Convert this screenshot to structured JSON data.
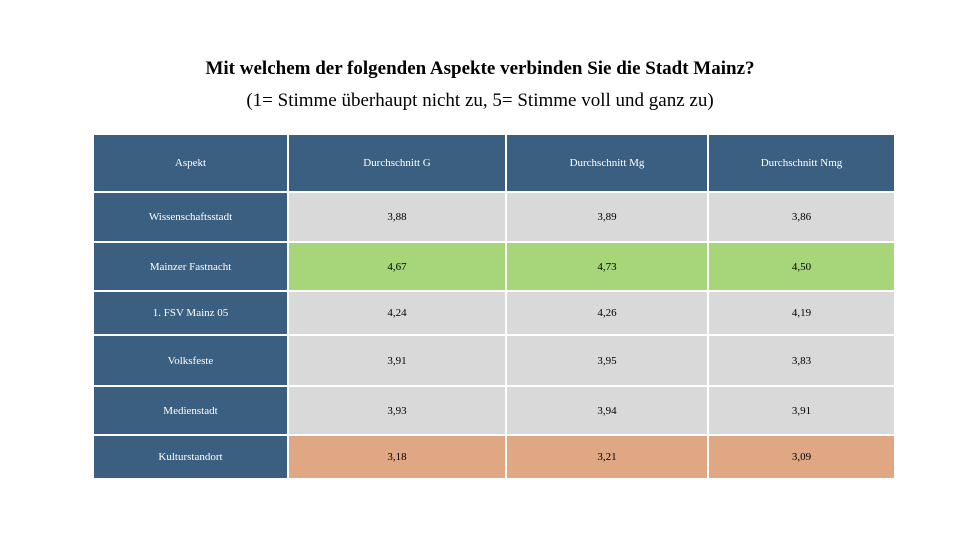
{
  "title": "Mit welchem der folgenden Aspekte verbinden Sie die Stadt Mainz?",
  "subtitle": "(1= Stimme überhaupt nicht zu, 5= Stimme voll und ganz zu)",
  "colors": {
    "header": "#3b5f80",
    "neutral": "#d9d9d9",
    "highest": "#a6d679",
    "lowest": "#dfa784"
  },
  "table": {
    "headers": [
      "Aspekt",
      "Durchschnitt G",
      "Durchschnitt Mg",
      "Durchschnitt Nmg"
    ],
    "rows": [
      {
        "aspect": "Wissenschaftsstadt",
        "g": "3,88",
        "mg": "3,89",
        "nmg": "3,86",
        "highlight": "none"
      },
      {
        "aspect": "Mainzer Fastnacht",
        "g": "4,67",
        "mg": "4,73",
        "nmg": "4,50",
        "highlight": "green"
      },
      {
        "aspect": "1. FSV Mainz 05",
        "g": "4,24",
        "mg": "4,26",
        "nmg": "4,19",
        "highlight": "none"
      },
      {
        "aspect": "Volksfeste",
        "g": "3,91",
        "mg": "3,95",
        "nmg": "3,83",
        "highlight": "none"
      },
      {
        "aspect": "Medienstadt",
        "g": "3,93",
        "mg": "3,94",
        "nmg": "3,91",
        "highlight": "none"
      },
      {
        "aspect": "Kulturstandort",
        "g": "3,18",
        "mg": "3,21",
        "nmg": "3,09",
        "highlight": "orange"
      }
    ]
  }
}
